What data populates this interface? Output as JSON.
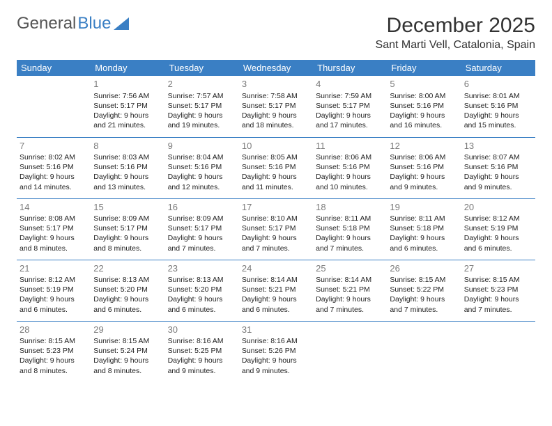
{
  "logo": {
    "text1": "General",
    "text2": "Blue"
  },
  "title": "December 2025",
  "location": "Sant Marti Vell, Catalonia, Spain",
  "colors": {
    "header_bg": "#3a7fc4",
    "header_text": "#ffffff",
    "cell_border": "#3a7fc4",
    "daynum_color": "#7a7a7a",
    "text_color": "#222222",
    "background": "#ffffff"
  },
  "weekdays": [
    "Sunday",
    "Monday",
    "Tuesday",
    "Wednesday",
    "Thursday",
    "Friday",
    "Saturday"
  ],
  "weeks": [
    [
      null,
      {
        "n": "1",
        "sr": "7:56 AM",
        "ss": "5:17 PM",
        "dl": "9 hours and 21 minutes."
      },
      {
        "n": "2",
        "sr": "7:57 AM",
        "ss": "5:17 PM",
        "dl": "9 hours and 19 minutes."
      },
      {
        "n": "3",
        "sr": "7:58 AM",
        "ss": "5:17 PM",
        "dl": "9 hours and 18 minutes."
      },
      {
        "n": "4",
        "sr": "7:59 AM",
        "ss": "5:17 PM",
        "dl": "9 hours and 17 minutes."
      },
      {
        "n": "5",
        "sr": "8:00 AM",
        "ss": "5:16 PM",
        "dl": "9 hours and 16 minutes."
      },
      {
        "n": "6",
        "sr": "8:01 AM",
        "ss": "5:16 PM",
        "dl": "9 hours and 15 minutes."
      }
    ],
    [
      {
        "n": "7",
        "sr": "8:02 AM",
        "ss": "5:16 PM",
        "dl": "9 hours and 14 minutes."
      },
      {
        "n": "8",
        "sr": "8:03 AM",
        "ss": "5:16 PM",
        "dl": "9 hours and 13 minutes."
      },
      {
        "n": "9",
        "sr": "8:04 AM",
        "ss": "5:16 PM",
        "dl": "9 hours and 12 minutes."
      },
      {
        "n": "10",
        "sr": "8:05 AM",
        "ss": "5:16 PM",
        "dl": "9 hours and 11 minutes."
      },
      {
        "n": "11",
        "sr": "8:06 AM",
        "ss": "5:16 PM",
        "dl": "9 hours and 10 minutes."
      },
      {
        "n": "12",
        "sr": "8:06 AM",
        "ss": "5:16 PM",
        "dl": "9 hours and 9 minutes."
      },
      {
        "n": "13",
        "sr": "8:07 AM",
        "ss": "5:16 PM",
        "dl": "9 hours and 9 minutes."
      }
    ],
    [
      {
        "n": "14",
        "sr": "8:08 AM",
        "ss": "5:17 PM",
        "dl": "9 hours and 8 minutes."
      },
      {
        "n": "15",
        "sr": "8:09 AM",
        "ss": "5:17 PM",
        "dl": "9 hours and 8 minutes."
      },
      {
        "n": "16",
        "sr": "8:09 AM",
        "ss": "5:17 PM",
        "dl": "9 hours and 7 minutes."
      },
      {
        "n": "17",
        "sr": "8:10 AM",
        "ss": "5:17 PM",
        "dl": "9 hours and 7 minutes."
      },
      {
        "n": "18",
        "sr": "8:11 AM",
        "ss": "5:18 PM",
        "dl": "9 hours and 7 minutes."
      },
      {
        "n": "19",
        "sr": "8:11 AM",
        "ss": "5:18 PM",
        "dl": "9 hours and 6 minutes."
      },
      {
        "n": "20",
        "sr": "8:12 AM",
        "ss": "5:19 PM",
        "dl": "9 hours and 6 minutes."
      }
    ],
    [
      {
        "n": "21",
        "sr": "8:12 AM",
        "ss": "5:19 PM",
        "dl": "9 hours and 6 minutes."
      },
      {
        "n": "22",
        "sr": "8:13 AM",
        "ss": "5:20 PM",
        "dl": "9 hours and 6 minutes."
      },
      {
        "n": "23",
        "sr": "8:13 AM",
        "ss": "5:20 PM",
        "dl": "9 hours and 6 minutes."
      },
      {
        "n": "24",
        "sr": "8:14 AM",
        "ss": "5:21 PM",
        "dl": "9 hours and 6 minutes."
      },
      {
        "n": "25",
        "sr": "8:14 AM",
        "ss": "5:21 PM",
        "dl": "9 hours and 7 minutes."
      },
      {
        "n": "26",
        "sr": "8:15 AM",
        "ss": "5:22 PM",
        "dl": "9 hours and 7 minutes."
      },
      {
        "n": "27",
        "sr": "8:15 AM",
        "ss": "5:23 PM",
        "dl": "9 hours and 7 minutes."
      }
    ],
    [
      {
        "n": "28",
        "sr": "8:15 AM",
        "ss": "5:23 PM",
        "dl": "9 hours and 8 minutes."
      },
      {
        "n": "29",
        "sr": "8:15 AM",
        "ss": "5:24 PM",
        "dl": "9 hours and 8 minutes."
      },
      {
        "n": "30",
        "sr": "8:16 AM",
        "ss": "5:25 PM",
        "dl": "9 hours and 9 minutes."
      },
      {
        "n": "31",
        "sr": "8:16 AM",
        "ss": "5:26 PM",
        "dl": "9 hours and 9 minutes."
      },
      null,
      null,
      null
    ]
  ],
  "labels": {
    "sunrise_prefix": "Sunrise: ",
    "sunset_prefix": "Sunset: ",
    "daylight_prefix": "Daylight: "
  }
}
